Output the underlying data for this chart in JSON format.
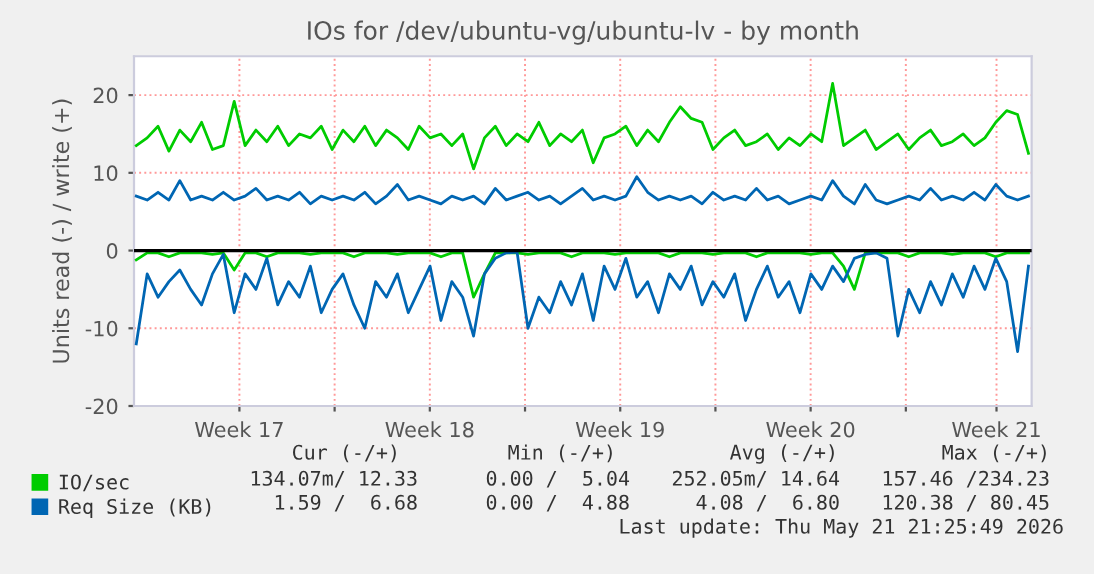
{
  "chart_data": {
    "type": "line",
    "title": "IOs for /dev/ubuntu-vg/ubuntu-lv - by month",
    "ylabel": "Units read (-) / write (+)",
    "x": [
      "2026-04-19T17:00",
      "2026-04-20T02:36",
      "2026-04-20T12:12",
      "2026-04-20T21:48",
      "2026-04-21T07:24",
      "2026-04-21T17:00",
      "2026-04-22T02:36",
      "2026-04-22T12:12",
      "2026-04-22T21:48",
      "2026-04-23T07:24",
      "2026-04-23T17:00",
      "2026-04-24T02:36",
      "2026-04-24T12:12",
      "2026-04-24T21:48",
      "2026-04-25T07:24",
      "2026-04-25T17:00",
      "2026-04-26T02:36",
      "2026-04-26T12:12",
      "2026-04-26T21:48",
      "2026-04-27T07:24",
      "2026-04-27T17:00",
      "2026-04-28T02:36",
      "2026-04-28T12:12",
      "2026-04-28T21:48",
      "2026-04-29T07:24",
      "2026-04-29T17:00",
      "2026-04-30T02:36",
      "2026-04-30T12:12",
      "2026-04-30T21:48",
      "2026-05-01T07:24",
      "2026-05-01T17:00",
      "2026-05-02T02:36",
      "2026-05-02T12:12",
      "2026-05-02T21:48",
      "2026-05-03T07:24",
      "2026-05-03T17:00",
      "2026-05-04T02:36",
      "2026-05-04T12:12",
      "2026-05-04T21:48",
      "2026-05-05T07:24",
      "2026-05-05T17:00",
      "2026-05-06T02:36",
      "2026-05-06T12:12",
      "2026-05-06T21:48",
      "2026-05-07T07:24",
      "2026-05-07T17:00",
      "2026-05-08T02:36",
      "2026-05-08T12:12",
      "2026-05-08T21:48",
      "2026-05-09T07:24",
      "2026-05-09T17:00",
      "2026-05-10T02:36",
      "2026-05-10T12:12",
      "2026-05-10T21:48",
      "2026-05-11T07:24",
      "2026-05-11T17:00",
      "2026-05-12T02:36",
      "2026-05-12T12:12",
      "2026-05-12T21:48",
      "2026-05-13T07:24",
      "2026-05-13T17:00",
      "2026-05-14T02:36",
      "2026-05-14T12:12",
      "2026-05-14T21:48",
      "2026-05-15T07:24",
      "2026-05-15T17:00",
      "2026-05-16T02:36",
      "2026-05-16T12:12",
      "2026-05-16T21:48",
      "2026-05-17T07:24",
      "2026-05-17T17:00",
      "2026-05-18T02:36",
      "2026-05-18T12:12",
      "2026-05-18T21:48",
      "2026-05-19T07:24",
      "2026-05-19T17:00",
      "2026-05-20T02:36",
      "2026-05-20T12:12",
      "2026-05-20T21:48",
      "2026-05-21T07:24",
      "2026-05-21T17:00",
      "2026-05-22T02:36",
      "2026-05-22T12:12"
    ],
    "series": [
      {
        "name": "IO/sec",
        "color": "#00cc00",
        "values": [
          13.5,
          14.5,
          16,
          12.8,
          15.5,
          14,
          16.5,
          13,
          13.5,
          19.2,
          13.5,
          15.5,
          14,
          16,
          13.5,
          15,
          14.5,
          16,
          13,
          15.5,
          14,
          16,
          13.5,
          15.5,
          14.5,
          13,
          16,
          14.5,
          15,
          13.5,
          15,
          10.5,
          14.5,
          16,
          13.5,
          15,
          14,
          16.5,
          13.5,
          15,
          14,
          15.5,
          11.3,
          14.5,
          15,
          16,
          13.5,
          15.5,
          14,
          16.5,
          18.5,
          17,
          16.5,
          13,
          14.5,
          15.5,
          13.5,
          14,
          15,
          13,
          14.5,
          13.5,
          15,
          14,
          21.5,
          13.5,
          14.5,
          15.5,
          13,
          14,
          15,
          13,
          14.5,
          15.5,
          13.5,
          14,
          15,
          13.5,
          14.5,
          16.5,
          18,
          17.5,
          12.5
        ]
      },
      {
        "color": "#00cc00",
        "values": [
          -1.2,
          -0.3,
          -0.3,
          -0.8,
          -0.3,
          -0.3,
          -0.3,
          -0.5,
          -0.3,
          -2.5,
          -0.3,
          -0.3,
          -0.8,
          -0.3,
          -0.3,
          -0.3,
          -0.5,
          -0.3,
          -0.3,
          -0.3,
          -0.8,
          -0.3,
          -0.3,
          -0.3,
          -0.5,
          -0.3,
          -0.3,
          -0.3,
          -0.8,
          -0.3,
          -0.3,
          -6,
          -3,
          -0.3,
          -0.3,
          -0.3,
          -0.5,
          -0.3,
          -0.3,
          -0.3,
          -0.8,
          -0.3,
          -0.3,
          -0.3,
          -0.5,
          -0.3,
          -0.3,
          -0.3,
          -0.3,
          -0.8,
          -0.3,
          -0.3,
          -0.3,
          -0.5,
          -0.3,
          -0.3,
          -0.3,
          -0.8,
          -0.3,
          -0.3,
          -0.3,
          -0.3,
          -0.5,
          -0.3,
          -0.3,
          -2,
          -5,
          -0.3,
          -0.3,
          -0.3,
          -0.3,
          -0.8,
          -0.3,
          -0.3,
          -0.3,
          -0.5,
          -0.3,
          -0.3,
          -0.3,
          -0.8,
          -0.3,
          -0.3,
          -0.3
        ]
      },
      {
        "name": "Req Size (KB)",
        "color": "#0066b3",
        "values": [
          7,
          6.5,
          7.5,
          6.5,
          9,
          6.5,
          7,
          6.5,
          7.5,
          6.5,
          7,
          8,
          6.5,
          7,
          6.5,
          7.5,
          6,
          7,
          6.5,
          7,
          6.5,
          7.5,
          6,
          7,
          8.5,
          6.5,
          7,
          6.5,
          6,
          7,
          6.5,
          7,
          6,
          8,
          6.5,
          7,
          7.5,
          6.5,
          7,
          6,
          7,
          8,
          6.5,
          7,
          6.5,
          7,
          9.5,
          7.5,
          6.5,
          7,
          6.5,
          7,
          6,
          7.5,
          6.5,
          7,
          6.5,
          8,
          6.5,
          7,
          6,
          6.5,
          7,
          6.5,
          9,
          7,
          6,
          8.5,
          6.5,
          6,
          6.5,
          7,
          6.5,
          8,
          6.5,
          7,
          6.5,
          7.5,
          6.5,
          8.5,
          7,
          6.5,
          7
        ]
      },
      {
        "color": "#0066b3",
        "values": [
          -12,
          -3,
          -6,
          -4,
          -2.5,
          -5,
          -7,
          -3,
          -0.5,
          -8,
          -3,
          -5,
          -1,
          -7,
          -4,
          -6,
          -2,
          -8,
          -5,
          -3,
          -7,
          -10,
          -4,
          -6,
          -3,
          -8,
          -5,
          -2,
          -9,
          -4,
          -6,
          -11,
          -3,
          -1,
          -0.3,
          -0.2,
          -10,
          -6,
          -8,
          -4,
          -7,
          -3,
          -9,
          -2,
          -5,
          -1,
          -6,
          -4,
          -8,
          -3,
          -5,
          -2,
          -7,
          -4,
          -6,
          -3,
          -9,
          -5,
          -2,
          -6,
          -4,
          -8,
          -3,
          -5,
          -2,
          -4,
          -1,
          -0.5,
          -0.3,
          -1,
          -11,
          -5,
          -8,
          -4,
          -7,
          -3,
          -6,
          -2,
          -5,
          -1,
          -4,
          -13,
          -2
        ]
      }
    ],
    "xlim": [
      "2026-04-19T15:00",
      "2026-05-22T15:00"
    ],
    "xticks": [
      {
        "value": "2026-04-23T12:00",
        "label": "Week 17"
      },
      {
        "value": "2026-04-27",
        "label": null
      },
      {
        "value": "2026-04-30T12:00",
        "label": "Week 18"
      },
      {
        "value": "2026-05-04",
        "label": null
      },
      {
        "value": "2026-05-07T12:00",
        "label": "Week 19"
      },
      {
        "value": "2026-05-11",
        "label": null
      },
      {
        "value": "2026-05-14T12:00",
        "label": "Week 20"
      },
      {
        "value": "2026-05-18",
        "label": null
      },
      {
        "value": "2026-05-21T08:00",
        "label": "Week 21"
      }
    ],
    "ylim": [
      -20,
      25
    ],
    "yticks": [
      -20,
      -10,
      0,
      10,
      20
    ],
    "ref_lines": [
      {
        "axis": "y",
        "value": 0,
        "color": "#000000"
      }
    ],
    "grid": true,
    "legend": "bottom left",
    "annotations": [
      "Cur (-/+)",
      "Min (-/+)",
      "Avg (-/+)",
      "Max (-/+)",
      "134.07m/ 12.33",
      "0.00 /  5.04",
      "252.05m/ 14.64",
      "157.46 /234.23",
      "1.59 /  6.68",
      "0.00 /  4.88",
      "4.08 /  6.80",
      "120.38 / 80.45",
      "Last update: Thu May 21 21:25:49 2026"
    ]
  }
}
